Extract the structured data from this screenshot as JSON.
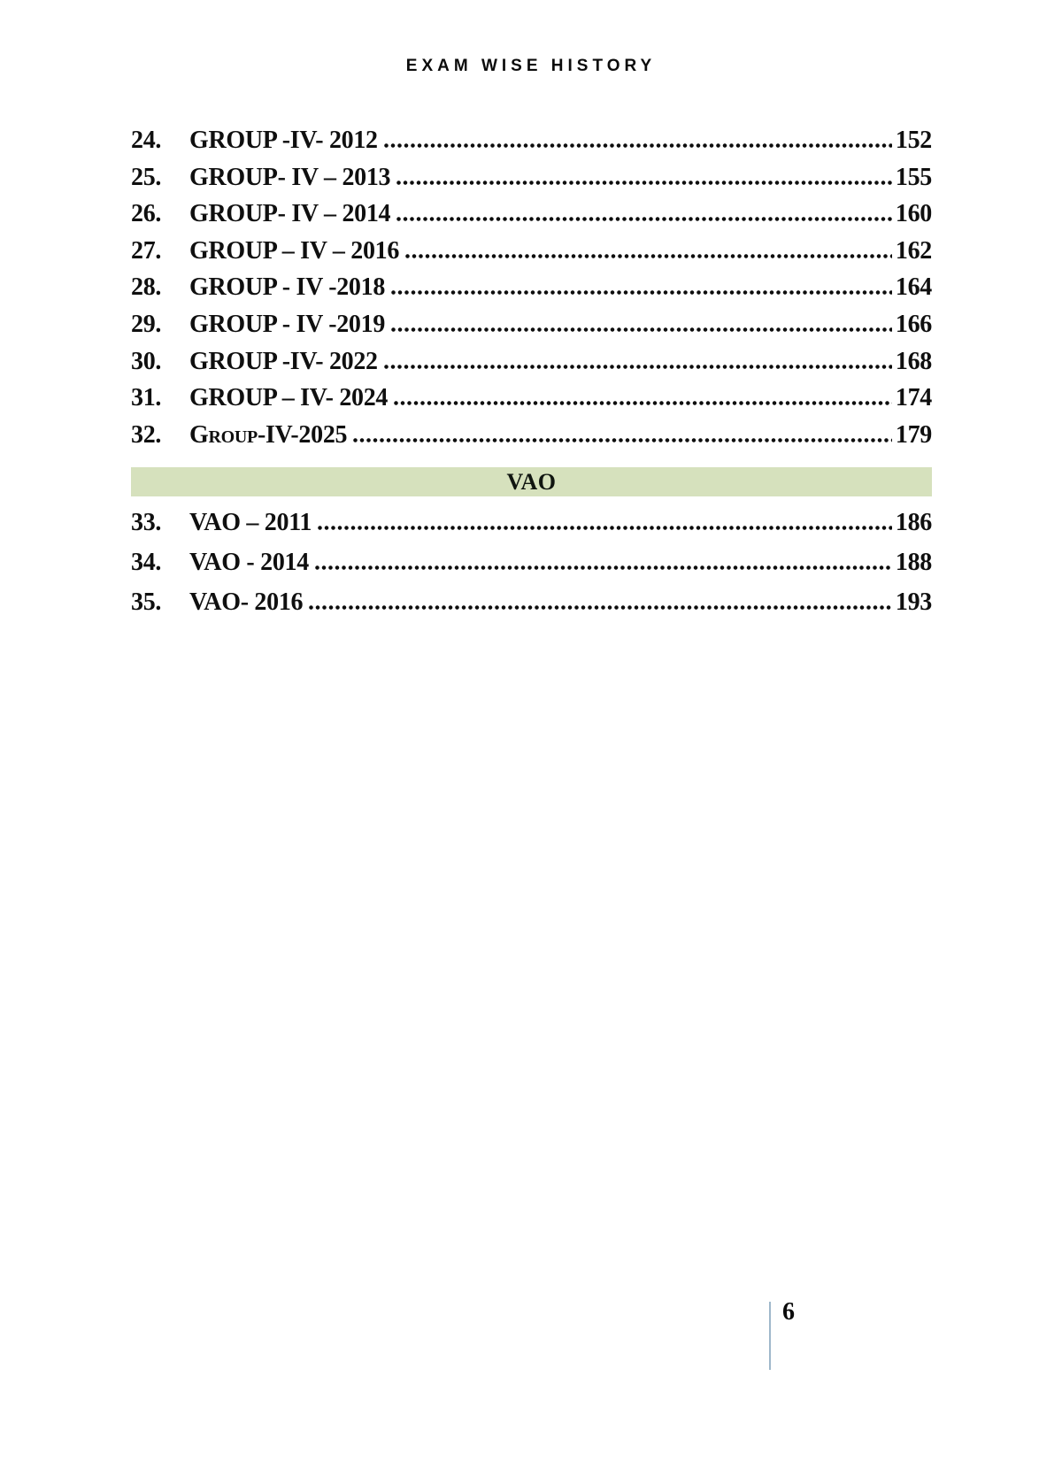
{
  "header": {
    "title": "EXAM WISE HISTORY"
  },
  "toc": {
    "sections": [
      {
        "header": null,
        "items": [
          {
            "num": "24.",
            "title": "GROUP -IV- 2012",
            "page": "152"
          },
          {
            "num": "25.",
            "title": "GROUP- IV – 2013",
            "page": "155"
          },
          {
            "num": "26.",
            "title": "GROUP- IV – 2014",
            "page": "160"
          },
          {
            "num": "27.",
            "title": "GROUP – IV – 2016",
            "page": "162"
          },
          {
            "num": "28.",
            "title": "GROUP - IV -2018",
            "page": "164"
          },
          {
            "num": "29.",
            "title": "GROUP - IV -2019",
            "page": "166"
          },
          {
            "num": "30.",
            "title": "GROUP -IV- 2022",
            "page": "168"
          },
          {
            "num": "31.",
            "title": "GROUP – IV- 2024",
            "page": "174"
          },
          {
            "num": "32.",
            "title": "Group-IV-2025",
            "page": "179",
            "small_caps": true
          }
        ]
      },
      {
        "header": "VAO",
        "items": [
          {
            "num": "33.",
            "title": "VAO – 2011",
            "page": "186"
          },
          {
            "num": "34.",
            "title": "VAO - 2014",
            "page": "188"
          },
          {
            "num": "35.",
            "title": "VAO- 2016",
            "page": "193"
          }
        ]
      }
    ]
  },
  "footer": {
    "page_number": "6"
  },
  "colors": {
    "section_band_bg": "#d6e1bd",
    "footer_rule": "#9fb8cb",
    "text_color": "#0f0f0f"
  }
}
